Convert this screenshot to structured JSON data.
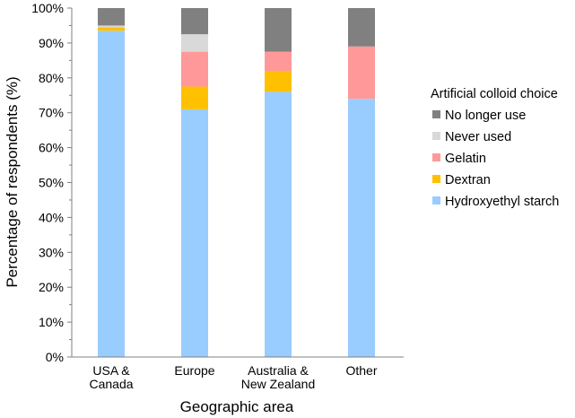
{
  "chart_data": {
    "type": "bar",
    "stacked": true,
    "categories": [
      [
        "USA &",
        "Canada"
      ],
      [
        "Europe"
      ],
      [
        "Australia &",
        "New Zealand"
      ],
      [
        "Other"
      ]
    ],
    "series": [
      {
        "name": "Hydroxyethyl starch",
        "color": "#99ccff",
        "values": [
          93.5,
          71.0,
          76.0,
          74.0
        ]
      },
      {
        "name": "Dextran",
        "color": "#ffc000",
        "values": [
          1.0,
          6.5,
          6.0,
          0.0
        ]
      },
      {
        "name": "Gelatin",
        "color": "#ff9999",
        "values": [
          0.0,
          10.0,
          5.5,
          15.0
        ]
      },
      {
        "name": "Never used",
        "color": "#d9d9d9",
        "values": [
          0.5,
          5.0,
          0.0,
          0.0
        ]
      },
      {
        "name": "No longer use",
        "color": "#808080",
        "values": [
          5.0,
          7.5,
          12.5,
          11.0
        ]
      }
    ],
    "xlabel": "Geographic area",
    "ylabel": "Percentage of respondents (%)",
    "ylim": [
      0,
      100
    ],
    "yticks": [
      "0%",
      "10%",
      "20%",
      "30%",
      "40%",
      "50%",
      "60%",
      "70%",
      "80%",
      "90%",
      "100%"
    ],
    "grid": false,
    "legend": {
      "title": "Artificial colloid choice",
      "placement": "right",
      "order": [
        "No longer use",
        "Never used",
        "Gelatin",
        "Dextran",
        "Hydroxyethyl starch"
      ]
    }
  }
}
